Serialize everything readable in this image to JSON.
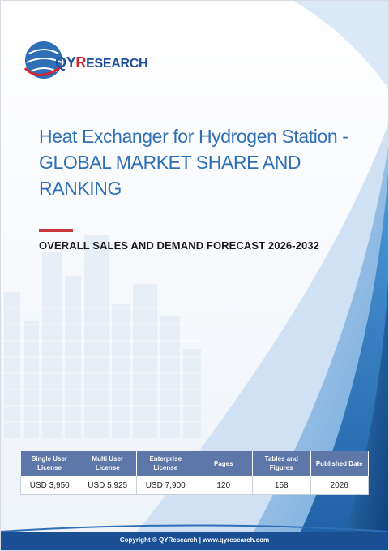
{
  "brand": {
    "logo_q": "Q",
    "logo_y": "Y",
    "logo_r": "R",
    "logo_rest": "ESEARCH",
    "colors": {
      "primary": "#2f6fb6",
      "accent": "#c8353c",
      "dark_blue": "#1f4f9c",
      "table_header": "#5d77a8"
    }
  },
  "report": {
    "title_line1": "Heat Exchanger for Hydrogen Station -",
    "title_line2": "GLOBAL MARKET SHARE AND RANKING",
    "subtitle": "OVERALL SALES AND DEMAND FORECAST 2026-2032"
  },
  "table": {
    "headers": [
      [
        "Single User",
        "License"
      ],
      [
        "Multi User",
        "License"
      ],
      [
        "Enterprise",
        "License"
      ],
      [
        "Pages",
        ""
      ],
      [
        "Tables and",
        "Figures"
      ],
      [
        "Published Date",
        ""
      ]
    ],
    "values": [
      "USD 3,950",
      "USD 5,925",
      "USD 7,900",
      "120",
      "158",
      "2026"
    ]
  },
  "footer": {
    "text": "Copyright © QYResearch | www.qyresearch.com"
  }
}
